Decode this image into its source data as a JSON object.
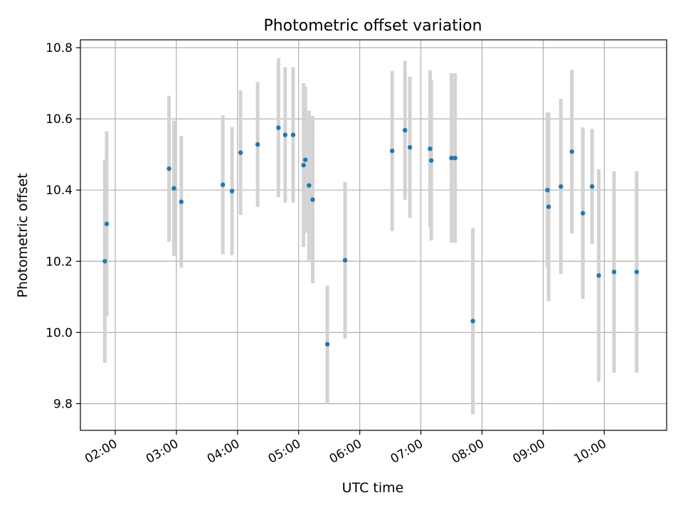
{
  "chart_data": {
    "type": "scatter",
    "title": "Photometric offset variation",
    "xlabel": "UTC time",
    "ylabel": "Photometric offset",
    "x_unit": "hours (UTC, decimal)",
    "xlim": [
      1.43,
      11.02
    ],
    "ylim": [
      9.725,
      10.822
    ],
    "x_ticks": [
      2,
      3,
      4,
      5,
      6,
      7,
      8,
      9,
      10
    ],
    "x_tick_labels": [
      "02:00",
      "03:00",
      "04:00",
      "05:00",
      "06:00",
      "07:00",
      "08:00",
      "09:00",
      "10:00"
    ],
    "y_ticks": [
      9.8,
      10.0,
      10.2,
      10.4,
      10.6,
      10.8
    ],
    "y_tick_labels": [
      "9.8",
      "10.0",
      "10.2",
      "10.4",
      "10.6",
      "10.8"
    ],
    "grid": true,
    "colors": {
      "point": "#1f77b4",
      "errorbar": "#d3d3d3",
      "grid": "#b0b0b0"
    },
    "series": [
      {
        "points": [
          {
            "x": 1.83,
            "y": 10.2,
            "err": 0.285
          },
          {
            "x": 1.86,
            "y": 10.305,
            "err": 0.26
          },
          {
            "x": 2.88,
            "y": 10.46,
            "err": 0.205
          },
          {
            "x": 2.96,
            "y": 10.405,
            "err": 0.19
          },
          {
            "x": 3.08,
            "y": 10.367,
            "err": 0.185
          },
          {
            "x": 3.76,
            "y": 10.415,
            "err": 0.195
          },
          {
            "x": 3.91,
            "y": 10.397,
            "err": 0.18
          },
          {
            "x": 4.05,
            "y": 10.505,
            "err": 0.175
          },
          {
            "x": 4.33,
            "y": 10.528,
            "err": 0.175
          },
          {
            "x": 4.67,
            "y": 10.575,
            "err": 0.195
          },
          {
            "x": 4.78,
            "y": 10.555,
            "err": 0.19
          },
          {
            "x": 4.91,
            "y": 10.555,
            "err": 0.19
          },
          {
            "x": 5.08,
            "y": 10.47,
            "err": 0.23
          },
          {
            "x": 5.11,
            "y": 10.485,
            "err": 0.205
          },
          {
            "x": 5.17,
            "y": 10.413,
            "err": 0.21
          },
          {
            "x": 5.23,
            "y": 10.373,
            "err": 0.235
          },
          {
            "x": 5.47,
            "y": 9.967,
            "err": 0.165
          },
          {
            "x": 5.76,
            "y": 10.203,
            "err": 0.22
          },
          {
            "x": 6.53,
            "y": 10.51,
            "err": 0.225
          },
          {
            "x": 6.74,
            "y": 10.568,
            "err": 0.195
          },
          {
            "x": 6.82,
            "y": 10.52,
            "err": 0.198
          },
          {
            "x": 7.15,
            "y": 10.516,
            "err": 0.22
          },
          {
            "x": 7.17,
            "y": 10.483,
            "err": 0.225
          },
          {
            "x": 7.5,
            "y": 10.49,
            "err": 0.238
          },
          {
            "x": 7.56,
            "y": 10.49,
            "err": 0.238
          },
          {
            "x": 7.85,
            "y": 10.032,
            "err": 0.262
          },
          {
            "x": 9.07,
            "y": 10.4,
            "err": 0.218
          },
          {
            "x": 9.09,
            "y": 10.353,
            "err": 0.265
          },
          {
            "x": 9.29,
            "y": 10.41,
            "err": 0.246
          },
          {
            "x": 9.47,
            "y": 10.508,
            "err": 0.23
          },
          {
            "x": 9.65,
            "y": 10.335,
            "err": 0.241
          },
          {
            "x": 9.8,
            "y": 10.41,
            "err": 0.162
          },
          {
            "x": 9.91,
            "y": 10.16,
            "err": 0.298
          },
          {
            "x": 10.16,
            "y": 10.17,
            "err": 0.283
          },
          {
            "x": 10.53,
            "y": 10.17,
            "err": 0.283
          }
        ]
      }
    ]
  }
}
